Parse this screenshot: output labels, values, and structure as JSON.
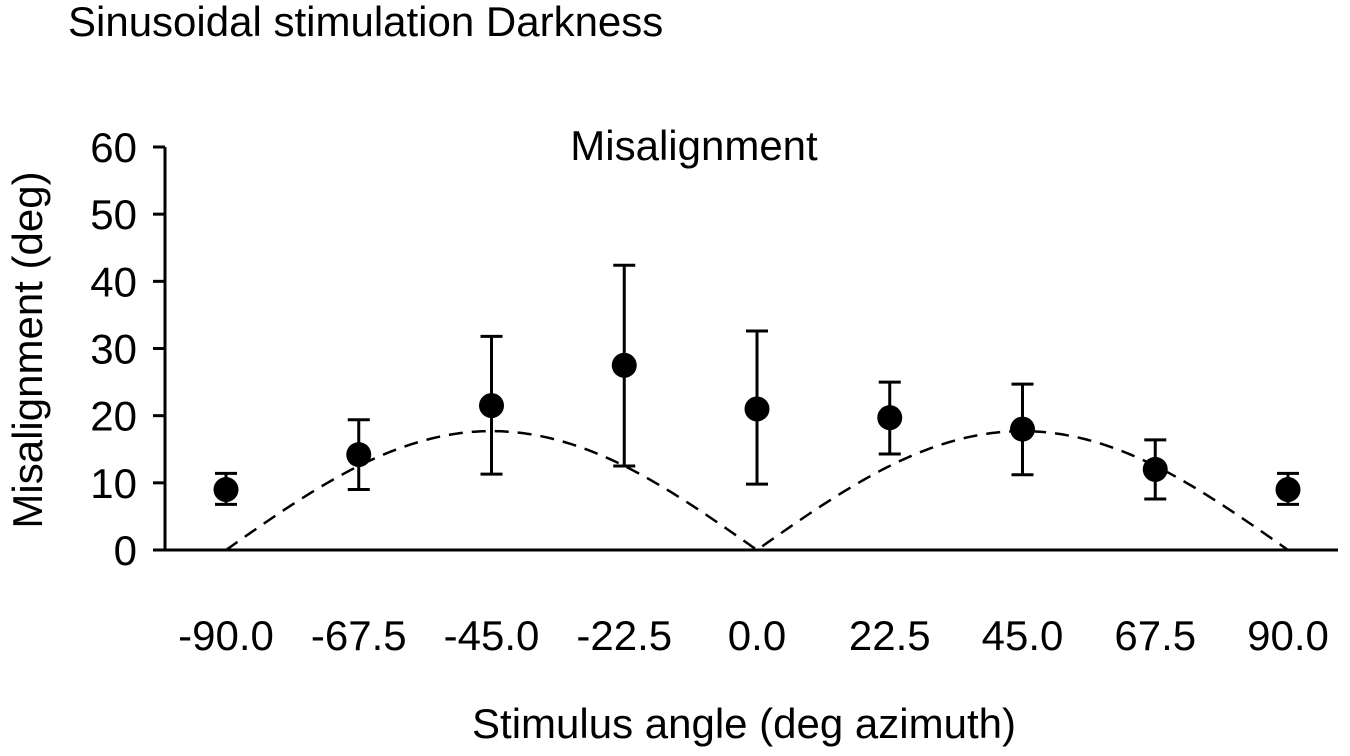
{
  "chart_data": {
    "type": "scatter",
    "title": "Sinusoidal stimulation Darkness",
    "subtitle": "Misalignment",
    "xlabel": "Stimulus angle (deg azimuth)",
    "ylabel": "Misalignment (deg)",
    "x_tick_labels": [
      "-90.0",
      "-67.5",
      "-45.0",
      "-22.5",
      "0.0",
      "22.5",
      "45.0",
      "67.5",
      "90.0"
    ],
    "y_tick_labels": [
      "0",
      "10",
      "20",
      "30",
      "40",
      "50",
      "60"
    ],
    "ylim": [
      0,
      60
    ],
    "grid": false,
    "legend": "none",
    "series": [
      {
        "style": "markers-with-error-bars",
        "x": [
          -90.0,
          -67.5,
          -45.0,
          -22.5,
          0.0,
          22.5,
          45.0,
          67.5,
          90.0
        ],
        "y": [
          9.0,
          14.2,
          21.5,
          27.5,
          21.0,
          19.7,
          18.0,
          12.0,
          9.0
        ],
        "error_low": [
          6.8,
          9.0,
          11.3,
          12.5,
          9.8,
          14.3,
          11.2,
          7.6,
          6.8
        ],
        "error_high": [
          11.4,
          19.4,
          31.8,
          42.4,
          32.6,
          25.0,
          24.7,
          16.4,
          11.4
        ]
      },
      {
        "style": "dashed-line",
        "function": "abs(sin(2*x))",
        "amplitude": 17.7
      }
    ]
  }
}
